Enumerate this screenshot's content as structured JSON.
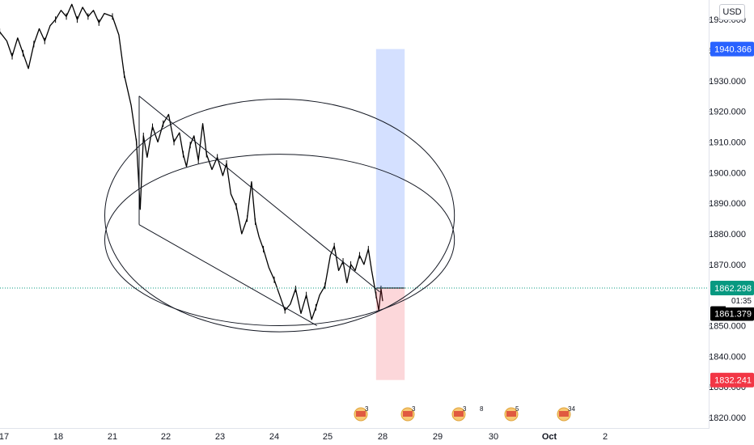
{
  "header": {
    "currency": "USD"
  },
  "price_scale": {
    "ticks": [
      "1950.000",
      "1940.000",
      "1930.000",
      "1920.000",
      "1910.000",
      "1900.000",
      "1890.000",
      "1880.000",
      "1870.000",
      "1850.000",
      "1840.000",
      "1830.000",
      "1820.000"
    ],
    "tags": {
      "target_high": {
        "label": "1940.366",
        "color": "#2962ff"
      },
      "entry": {
        "label": "1862.298",
        "color": "#089981"
      },
      "countdown": "01:35",
      "last": {
        "label": "1861.379",
        "color": "#000000"
      },
      "stop": {
        "label": "1832.241",
        "color": "#f23645"
      }
    }
  },
  "time_scale": {
    "labels": [
      "17",
      "18",
      "21",
      "22",
      "23",
      "24",
      "25",
      "28",
      "29",
      "30",
      "Oct",
      "2"
    ]
  },
  "events": [
    {
      "count": "3"
    },
    {
      "count": "3"
    },
    {
      "count": "3"
    },
    {
      "count": "8"
    },
    {
      "count": "5"
    },
    {
      "count": "34"
    }
  ],
  "chart_data": {
    "type": "line",
    "title": "",
    "xlabel": "",
    "ylabel": "",
    "y_unit": "USD",
    "ylim": [
      1817,
      1957
    ],
    "xlim": [
      16.9,
      34.1
    ],
    "grid": false,
    "x_tick_labels": [
      "17",
      "18",
      "21",
      "22",
      "23",
      "24",
      "25",
      "28",
      "29",
      "30",
      "Oct",
      "2"
    ],
    "x_tick_positions": [
      17,
      18,
      19,
      20,
      21,
      22,
      23,
      24,
      25,
      26,
      27,
      28
    ],
    "series": [
      {
        "values_xy": [
          [
            16.92,
            1946
          ],
          [
            17.05,
            1943
          ],
          [
            17.15,
            1938
          ],
          [
            17.25,
            1944
          ],
          [
            17.35,
            1939
          ],
          [
            17.45,
            1934
          ],
          [
            17.55,
            1942
          ],
          [
            17.65,
            1947
          ],
          [
            17.75,
            1943
          ],
          [
            17.85,
            1948
          ],
          [
            17.95,
            1950
          ],
          [
            18.05,
            1953
          ],
          [
            18.15,
            1951
          ],
          [
            18.25,
            1955
          ],
          [
            18.35,
            1950
          ],
          [
            18.45,
            1954
          ],
          [
            18.55,
            1951
          ],
          [
            18.65,
            1953
          ],
          [
            18.75,
            1949
          ],
          [
            18.85,
            1952
          ],
          [
            19.0,
            1951
          ],
          [
            19.12,
            1945
          ],
          [
            19.22,
            1932
          ],
          [
            19.35,
            1922
          ],
          [
            19.45,
            1910
          ],
          [
            19.52,
            1888
          ],
          [
            19.58,
            1912
          ],
          [
            19.65,
            1905
          ],
          [
            19.75,
            1915
          ],
          [
            19.85,
            1910
          ],
          [
            19.95,
            1916
          ],
          [
            20.05,
            1919
          ],
          [
            20.15,
            1910
          ],
          [
            20.25,
            1913
          ],
          [
            20.32,
            1906
          ],
          [
            20.38,
            1902
          ],
          [
            20.45,
            1909
          ],
          [
            20.52,
            1912
          ],
          [
            20.6,
            1904
          ],
          [
            20.68,
            1916
          ],
          [
            20.75,
            1906
          ],
          [
            20.85,
            1901
          ],
          [
            20.95,
            1905
          ],
          [
            21.05,
            1899
          ],
          [
            21.12,
            1903
          ],
          [
            21.2,
            1893
          ],
          [
            21.3,
            1889
          ],
          [
            21.4,
            1880
          ],
          [
            21.5,
            1885
          ],
          [
            21.58,
            1897
          ],
          [
            21.65,
            1884
          ],
          [
            21.72,
            1879
          ],
          [
            21.8,
            1875
          ],
          [
            21.9,
            1869
          ],
          [
            22.0,
            1865
          ],
          [
            22.1,
            1860
          ],
          [
            22.2,
            1855
          ],
          [
            22.3,
            1857
          ],
          [
            22.4,
            1862
          ],
          [
            22.5,
            1854
          ],
          [
            22.6,
            1860
          ],
          [
            22.7,
            1852
          ],
          [
            22.78,
            1856
          ],
          [
            22.85,
            1860
          ],
          [
            22.95,
            1863
          ],
          [
            23.05,
            1873
          ],
          [
            23.12,
            1876
          ],
          [
            23.2,
            1868
          ],
          [
            23.28,
            1871
          ],
          [
            23.35,
            1864
          ],
          [
            23.42,
            1870
          ],
          [
            23.5,
            1868
          ],
          [
            23.58,
            1873
          ],
          [
            23.66,
            1870
          ],
          [
            23.74,
            1875
          ],
          [
            23.8,
            1868
          ],
          [
            23.88,
            1860
          ],
          [
            23.93,
            1855
          ],
          [
            23.97,
            1862
          ],
          [
            24.0,
            1858
          ]
        ]
      }
    ],
    "annotations": {
      "channel_upper": [
        [
          19.5,
          1925
        ],
        [
          23.95,
          1861
        ]
      ],
      "channel_lower": [
        [
          19.5,
          1883
        ],
        [
          22.8,
          1850
        ]
      ],
      "ellipse_outer": {
        "cx": 22.1,
        "cy": 1886,
        "rx": 3.2,
        "ry_price": 38
      },
      "ellipse_inner": {
        "cx": 22.1,
        "cy": 1878,
        "rx": 3.2,
        "ry_price": 28
      },
      "position": {
        "x_start": 23.88,
        "x_end": 24.4,
        "entry": 1862.298,
        "target": 1940.366,
        "stop": 1832.241
      },
      "crosshair_price": 1862.298
    }
  }
}
